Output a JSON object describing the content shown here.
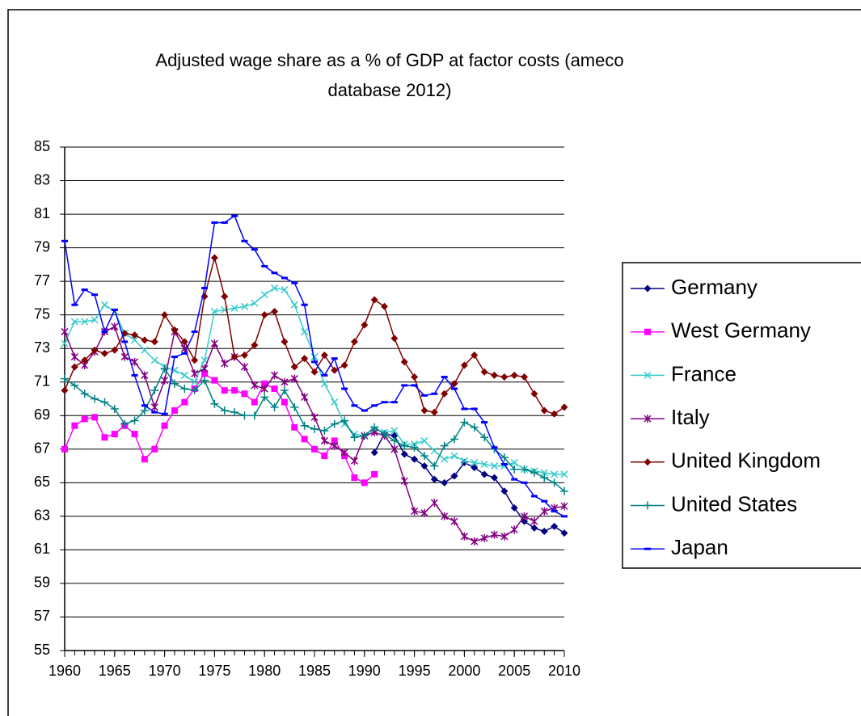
{
  "chart_data": {
    "type": "line",
    "title": "Adjusted wage share as a % of GDP at factor costs (ameco database 2012)",
    "x": [
      1960,
      1961,
      1962,
      1963,
      1964,
      1965,
      1966,
      1967,
      1968,
      1969,
      1970,
      1971,
      1972,
      1973,
      1974,
      1975,
      1976,
      1977,
      1978,
      1979,
      1980,
      1981,
      1982,
      1983,
      1984,
      1985,
      1986,
      1987,
      1988,
      1989,
      1990,
      1991,
      1992,
      1993,
      1994,
      1995,
      1996,
      1997,
      1998,
      1999,
      2000,
      2001,
      2002,
      2003,
      2004,
      2005,
      2006,
      2007,
      2008,
      2009,
      2010
    ],
    "xlim": [
      1960,
      2010
    ],
    "xticks": [
      1960,
      1965,
      1970,
      1975,
      1980,
      1985,
      1990,
      1995,
      2000,
      2005,
      2010
    ],
    "ylim": [
      55,
      85
    ],
    "yticks": [
      55,
      57,
      59,
      61,
      63,
      65,
      67,
      69,
      71,
      73,
      75,
      77,
      79,
      81,
      83,
      85
    ],
    "grid": true,
    "legend": "right",
    "series": [
      {
        "name": "Germany",
        "color": "#000080",
        "marker": "diamond",
        "values": [
          null,
          null,
          null,
          null,
          null,
          null,
          null,
          null,
          null,
          null,
          null,
          null,
          null,
          null,
          null,
          null,
          null,
          null,
          null,
          null,
          null,
          null,
          null,
          null,
          null,
          null,
          null,
          null,
          null,
          null,
          null,
          66.8,
          67.9,
          67.8,
          66.7,
          66.4,
          66.0,
          65.2,
          65.0,
          65.4,
          66.2,
          65.9,
          65.5,
          65.3,
          64.5,
          63.5,
          62.7,
          62.3,
          62.1,
          62.4,
          62.0
        ]
      },
      {
        "name": "West Germany",
        "color": "#ff00ff",
        "marker": "square",
        "values": [
          67.0,
          68.4,
          68.8,
          68.9,
          67.7,
          67.9,
          68.4,
          67.9,
          66.4,
          67.0,
          68.4,
          69.3,
          69.8,
          70.6,
          71.5,
          71.1,
          70.5,
          70.5,
          70.3,
          69.8,
          70.9,
          70.6,
          69.8,
          68.3,
          67.6,
          67.0,
          66.6,
          67.5,
          66.6,
          65.3,
          65.0,
          65.5,
          null,
          null,
          null,
          null,
          null,
          null,
          null,
          null,
          null,
          null,
          null,
          null,
          null,
          null,
          null,
          null,
          null,
          null,
          null
        ]
      },
      {
        "name": "France",
        "color": "#33cccc",
        "marker": "x",
        "values": [
          73.3,
          74.6,
          74.6,
          74.7,
          75.6,
          75.2,
          73.9,
          73.5,
          72.9,
          72.3,
          71.9,
          71.7,
          71.4,
          71.0,
          72.3,
          75.2,
          75.3,
          75.4,
          75.5,
          75.7,
          76.2,
          76.6,
          76.5,
          75.6,
          74.0,
          72.5,
          70.9,
          69.8,
          68.5,
          67.9,
          67.8,
          68.2,
          68.0,
          68.1,
          67.3,
          67.3,
          67.5,
          66.9,
          66.4,
          66.6,
          66.3,
          66.2,
          66.1,
          66.0,
          66.0,
          66.2,
          65.8,
          65.7,
          65.6,
          65.5,
          65.5
        ]
      },
      {
        "name": "Italy",
        "color": "#800080",
        "marker": "star",
        "values": [
          74.0,
          72.5,
          72.0,
          72.8,
          74.0,
          74.3,
          72.5,
          72.2,
          71.4,
          69.5,
          71.1,
          74.0,
          73.0,
          71.5,
          71.8,
          73.3,
          72.1,
          72.5,
          71.9,
          70.8,
          70.6,
          71.4,
          71.0,
          71.2,
          70.1,
          68.9,
          67.5,
          67.2,
          66.8,
          66.3,
          67.8,
          68.0,
          67.8,
          67.0,
          65.1,
          63.3,
          63.2,
          63.8,
          63.0,
          62.7,
          61.8,
          61.5,
          61.7,
          61.9,
          61.8,
          62.2,
          63.0,
          62.7,
          63.3,
          63.5,
          63.6
        ]
      },
      {
        "name": "United Kingdom",
        "color": "#800000",
        "marker": "diamond",
        "values": [
          70.5,
          71.9,
          72.3,
          72.9,
          72.7,
          72.9,
          73.9,
          73.8,
          73.5,
          73.4,
          75.0,
          74.1,
          73.4,
          72.3,
          76.1,
          78.4,
          76.1,
          72.5,
          72.6,
          73.2,
          75.0,
          75.2,
          73.4,
          71.9,
          72.4,
          71.6,
          72.6,
          71.7,
          72.0,
          73.4,
          74.4,
          75.9,
          75.5,
          73.6,
          72.2,
          71.3,
          69.3,
          69.2,
          70.3,
          70.9,
          72.0,
          72.6,
          71.6,
          71.4,
          71.3,
          71.4,
          71.3,
          70.3,
          69.3,
          69.1,
          69.5
        ]
      },
      {
        "name": "United States",
        "color": "#008080",
        "marker": "plus",
        "values": [
          71.2,
          70.8,
          70.3,
          70.0,
          69.8,
          69.4,
          68.5,
          68.7,
          69.3,
          70.5,
          71.8,
          70.9,
          70.6,
          70.5,
          71.1,
          69.7,
          69.3,
          69.2,
          69.0,
          69.0,
          70.1,
          69.5,
          70.5,
          69.5,
          68.4,
          68.2,
          68.1,
          68.5,
          68.7,
          67.7,
          67.8,
          68.3,
          67.9,
          67.5,
          67.2,
          67.1,
          66.6,
          66.0,
          67.2,
          67.6,
          68.6,
          68.3,
          67.7,
          67.0,
          66.5,
          65.8,
          65.8,
          65.6,
          65.3,
          65.0,
          64.5
        ]
      },
      {
        "name": "Japan",
        "color": "#0000ff",
        "marker": "dash",
        "values": [
          79.4,
          75.6,
          76.5,
          76.2,
          74.0,
          75.3,
          73.4,
          71.4,
          69.6,
          69.2,
          69.1,
          72.5,
          72.7,
          74.0,
          76.6,
          80.5,
          80.5,
          80.9,
          79.4,
          78.9,
          77.9,
          77.5,
          77.2,
          76.9,
          75.6,
          72.2,
          71.4,
          72.4,
          70.6,
          69.6,
          69.3,
          69.6,
          69.8,
          69.8,
          70.8,
          70.8,
          70.2,
          70.3,
          71.3,
          70.6,
          69.4,
          69.4,
          68.6,
          67.1,
          66.1,
          65.2,
          65.0,
          64.2,
          63.9,
          63.3,
          63.0
        ]
      }
    ]
  }
}
